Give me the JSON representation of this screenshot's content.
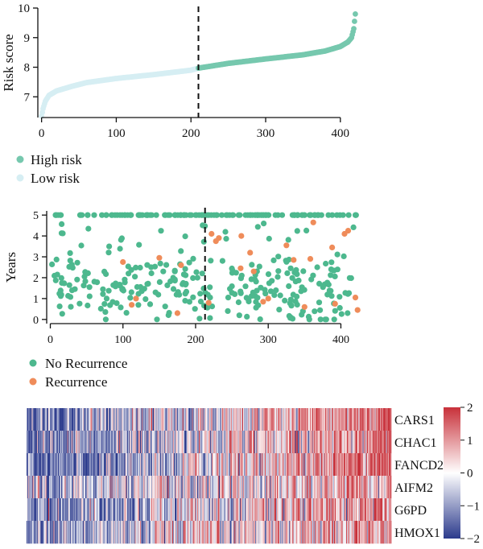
{
  "chart_data": [
    {
      "type": "scatter",
      "ylabel": "Risk score",
      "xlim": [
        -5,
        425
      ],
      "ylim": [
        6.3,
        10.0
      ],
      "xticks": [
        0,
        100,
        200,
        300,
        400
      ],
      "yticks": [
        7,
        8,
        9,
        10
      ],
      "cutoff": 210,
      "curve": [
        [
          0,
          6.35
        ],
        [
          2,
          6.6
        ],
        [
          5,
          6.85
        ],
        [
          10,
          7.05
        ],
        [
          20,
          7.2
        ],
        [
          40,
          7.35
        ],
        [
          60,
          7.48
        ],
        [
          100,
          7.62
        ],
        [
          150,
          7.75
        ],
        [
          200,
          7.9
        ],
        [
          210,
          7.97
        ],
        [
          250,
          8.13
        ],
        [
          300,
          8.28
        ],
        [
          350,
          8.42
        ],
        [
          380,
          8.55
        ],
        [
          400,
          8.7
        ],
        [
          410,
          8.85
        ],
        [
          415,
          9.0
        ],
        [
          418,
          9.3
        ],
        [
          420,
          9.8
        ]
      ],
      "n": 421,
      "legend_position": "bottom-left",
      "legend": [
        {
          "label": "High risk",
          "color": "#76c8ae"
        },
        {
          "label": "Low risk",
          "color": "#d6eef3"
        }
      ]
    },
    {
      "type": "scatter",
      "ylabel": "Years",
      "xlim": [
        -5,
        425
      ],
      "ylim": [
        -0.2,
        5.2
      ],
      "xticks": [
        0,
        100,
        200,
        300,
        400
      ],
      "yticks": [
        0,
        1,
        2,
        3,
        4,
        5
      ],
      "cutoff": 213,
      "n_censored_at_5": 130,
      "recurrence_points": [
        [
          100,
          2.75
        ],
        [
          112,
          0.7
        ],
        [
          118,
          1.0
        ],
        [
          150,
          2.95
        ],
        [
          175,
          0.3
        ],
        [
          180,
          2.6
        ],
        [
          218,
          0.8
        ],
        [
          222,
          4.1
        ],
        [
          228,
          3.75
        ],
        [
          232,
          3.9
        ],
        [
          262,
          2.45
        ],
        [
          263,
          4.0
        ],
        [
          275,
          3.2
        ],
        [
          280,
          2.3
        ],
        [
          293,
          0.85
        ],
        [
          300,
          1.0
        ],
        [
          325,
          3.55
        ],
        [
          335,
          2.85
        ],
        [
          350,
          0.6
        ],
        [
          358,
          2.9
        ],
        [
          362,
          4.65
        ],
        [
          388,
          3.45
        ],
        [
          392,
          0.75
        ],
        [
          405,
          4.1
        ],
        [
          410,
          4.25
        ],
        [
          420,
          1.05
        ],
        [
          423,
          0.45
        ]
      ],
      "legend_position": "bottom-left",
      "legend": [
        {
          "label": "No Recurrence",
          "color": "#4db88e"
        },
        {
          "label": "Recurrence",
          "color": "#ef8c5a"
        }
      ]
    },
    {
      "type": "heatmap",
      "rows": [
        "CARS1",
        "CHAC1",
        "FANCD2",
        "AIFM2",
        "G6PD",
        "HMOX1"
      ],
      "columns": 421,
      "row_trend": [
        1.0,
        1.0,
        1.2,
        0.55,
        0.8,
        0.75
      ],
      "colorbar": {
        "min": -2,
        "max": 2,
        "ticks": [
          2,
          1,
          0,
          -1,
          -2
        ],
        "tick_labels": [
          "2",
          "1",
          "0",
          "−1",
          "−2"
        ],
        "colors": [
          "#2b3a8c",
          "#ffffff",
          "#c8313a"
        ]
      }
    }
  ]
}
